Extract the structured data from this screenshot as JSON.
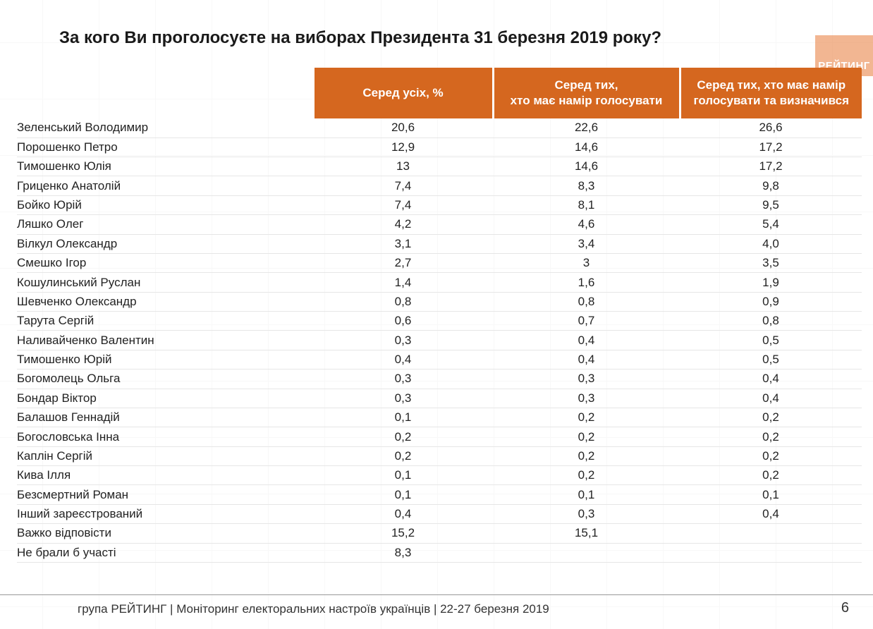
{
  "title": "За кого Ви проголосуєте на виборах Президента 31 березня 2019 року?",
  "logo_text": "РЕЙТИНГ",
  "table": {
    "header_color": "#d5671f",
    "header_text_color": "#ffffff",
    "border_color": "#e6e6e6",
    "columns": [
      "Серед усіх, %",
      "Серед тих,\nхто має намір голосувати",
      "Серед тих, хто має намір голосувати та визначився"
    ],
    "rows": [
      {
        "name": "Зеленський Володимир",
        "v": [
          "20,6",
          "22,6",
          "26,6"
        ]
      },
      {
        "name": "Порошенко Петро",
        "v": [
          "12,9",
          "14,6",
          "17,2"
        ]
      },
      {
        "name": "Тимошенко Юлія",
        "v": [
          "13",
          "14,6",
          "17,2"
        ]
      },
      {
        "name": "Гриценко Анатолій",
        "v": [
          "7,4",
          "8,3",
          "9,8"
        ]
      },
      {
        "name": "Бойко Юрій",
        "v": [
          "7,4",
          "8,1",
          "9,5"
        ]
      },
      {
        "name": "Ляшко Олег",
        "v": [
          "4,2",
          "4,6",
          "5,4"
        ]
      },
      {
        "name": "Вілкул Олександр",
        "v": [
          "3,1",
          "3,4",
          "4,0"
        ]
      },
      {
        "name": "Смешко Ігор",
        "v": [
          "2,7",
          "3",
          "3,5"
        ]
      },
      {
        "name": "Кошулинський Руслан",
        "v": [
          "1,4",
          "1,6",
          "1,9"
        ]
      },
      {
        "name": "Шевченко Олександр",
        "v": [
          "0,8",
          "0,8",
          "0,9"
        ]
      },
      {
        "name": "Тарута Сергій",
        "v": [
          "0,6",
          "0,7",
          "0,8"
        ]
      },
      {
        "name": "Наливайченко Валентин",
        "v": [
          "0,3",
          "0,4",
          "0,5"
        ]
      },
      {
        "name": "Тимошенко Юрій",
        "v": [
          "0,4",
          "0,4",
          "0,5"
        ]
      },
      {
        "name": "Богомолець Ольга",
        "v": [
          "0,3",
          "0,3",
          "0,4"
        ]
      },
      {
        "name": "Бондар Віктор",
        "v": [
          "0,3",
          "0,3",
          "0,4"
        ]
      },
      {
        "name": "Балашов Геннадій",
        "v": [
          "0,1",
          "0,2",
          "0,2"
        ]
      },
      {
        "name": "Богословська Інна",
        "v": [
          "0,2",
          "0,2",
          "0,2"
        ]
      },
      {
        "name": "Каплін Сергій",
        "v": [
          "0,2",
          "0,2",
          "0,2"
        ]
      },
      {
        "name": "Кива Ілля",
        "v": [
          "0,1",
          "0,2",
          "0,2"
        ]
      },
      {
        "name": "Безсмертний Роман",
        "v": [
          "0,1",
          "0,1",
          "0,1"
        ]
      },
      {
        "name": "Інший зареєстрований",
        "v": [
          "0,4",
          "0,3",
          "0,4"
        ]
      },
      {
        "name": "Важко відповісти",
        "v": [
          "15,2",
          "15,1",
          ""
        ]
      },
      {
        "name": "Не брали б участі",
        "v": [
          "8,3",
          "",
          ""
        ]
      }
    ]
  },
  "footer": "група РЕЙТИНГ | Моніторинг електоральних настроїв українців  |  22-27 березня 2019",
  "page_number": "6"
}
